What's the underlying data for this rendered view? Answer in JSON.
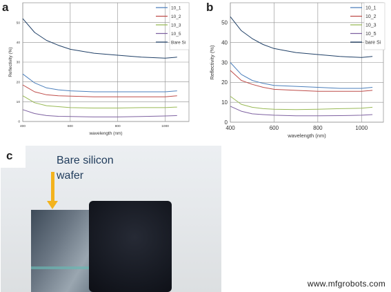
{
  "panel_labels": {
    "a": "a",
    "b": "b",
    "c": "c"
  },
  "photo": {
    "caption_line1": "Bare silicon",
    "caption_line2": "wafer",
    "arrow_color": "#f3b31e"
  },
  "watermark": "www.mfgrobots.com",
  "chart_data": [
    {
      "type": "line",
      "panel": "a",
      "xlabel": "wavelength (nm)",
      "ylabel": "Reflectivity (%)",
      "xlim": [
        400,
        1100
      ],
      "ylim": [
        0,
        60
      ],
      "xticks": [
        400,
        600,
        800,
        1000
      ],
      "yticks": [
        0,
        10,
        20,
        30,
        40,
        50
      ],
      "grid": true,
      "legend_position": "top-right",
      "series": [
        {
          "name": "10_1",
          "color": "#4a7ebb",
          "x": [
            400,
            450,
            500,
            550,
            600,
            700,
            800,
            900,
            1000,
            1050
          ],
          "y": [
            24,
            19.5,
            17,
            16,
            15.5,
            15,
            15,
            15,
            15,
            15.5
          ]
        },
        {
          "name": "10_2",
          "color": "#be4b48",
          "x": [
            400,
            450,
            500,
            550,
            600,
            700,
            800,
            900,
            1000,
            1050
          ],
          "y": [
            18.5,
            15,
            13.5,
            13,
            12.8,
            12.5,
            12.5,
            12.5,
            12.5,
            13
          ]
        },
        {
          "name": "10_3",
          "color": "#98b954",
          "x": [
            400,
            450,
            500,
            550,
            600,
            700,
            800,
            900,
            1000,
            1050
          ],
          "y": [
            13,
            9.5,
            8,
            7.5,
            7,
            6.8,
            6.8,
            7,
            7,
            7.3
          ]
        },
        {
          "name": "10_5",
          "color": "#7d60a0",
          "x": [
            400,
            450,
            500,
            550,
            600,
            700,
            800,
            900,
            1000,
            1050
          ],
          "y": [
            6,
            4,
            3,
            2.6,
            2.5,
            2.3,
            2.3,
            2.5,
            2.8,
            3
          ]
        },
        {
          "name": "Bare Si",
          "color": "#1f3f66",
          "x": [
            400,
            450,
            500,
            550,
            600,
            650,
            700,
            800,
            900,
            1000,
            1050
          ],
          "y": [
            52,
            45,
            41,
            38.5,
            36.5,
            35.5,
            34.5,
            33.5,
            32.5,
            32,
            32.5
          ]
        }
      ]
    },
    {
      "type": "line",
      "panel": "b",
      "xlabel": "wavelength (nm)",
      "ylabel": "Reflectivity (%)",
      "xlim": [
        400,
        1100
      ],
      "ylim": [
        0,
        60
      ],
      "xticks": [
        400,
        600,
        800,
        1000
      ],
      "yticks": [
        0,
        10,
        20,
        30,
        40,
        50
      ],
      "grid": true,
      "legend_position": "top-right",
      "series": [
        {
          "name": "10_1",
          "color": "#4a7ebb",
          "x": [
            400,
            450,
            500,
            550,
            600,
            700,
            800,
            900,
            1000,
            1050
          ],
          "y": [
            30,
            24,
            21,
            19.5,
            18.5,
            18,
            17.5,
            17,
            17,
            17.5
          ]
        },
        {
          "name": "10_2",
          "color": "#be4b48",
          "x": [
            400,
            450,
            500,
            550,
            600,
            700,
            800,
            900,
            1000,
            1050
          ],
          "y": [
            26,
            21,
            19,
            17.5,
            16.5,
            16,
            15.5,
            15.5,
            15.5,
            16
          ]
        },
        {
          "name": "10_3",
          "color": "#98b954",
          "x": [
            400,
            450,
            500,
            550,
            600,
            700,
            800,
            900,
            1000,
            1050
          ],
          "y": [
            13,
            9,
            7.5,
            6.8,
            6.5,
            6.3,
            6.5,
            6.8,
            7,
            7.5
          ]
        },
        {
          "name": "10_5",
          "color": "#7d60a0",
          "x": [
            400,
            450,
            500,
            550,
            600,
            700,
            800,
            900,
            1000,
            1050
          ],
          "y": [
            8,
            5.5,
            4.2,
            3.8,
            3.5,
            3.2,
            3.2,
            3.3,
            3.5,
            3.8
          ]
        },
        {
          "name": "bare Si",
          "color": "#1f3f66",
          "x": [
            400,
            450,
            500,
            550,
            600,
            650,
            700,
            800,
            900,
            1000,
            1050
          ],
          "y": [
            53,
            46,
            42,
            39,
            37,
            36,
            35,
            34,
            33,
            32.5,
            33
          ]
        }
      ]
    }
  ]
}
